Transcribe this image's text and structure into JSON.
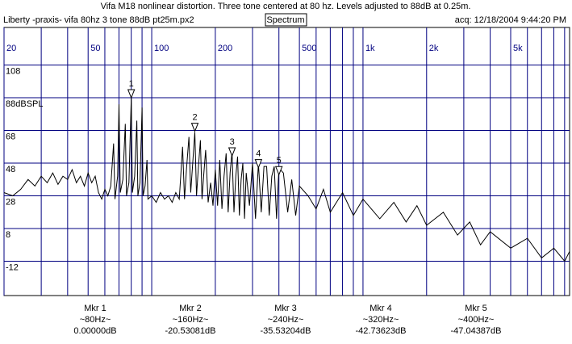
{
  "chart_data": {
    "type": "line",
    "title": "Vifa M18 nonlinear distortion. Three tone centered at 80 hz. Levels adjusted to 88dB at 0.25m.",
    "file_label": "Liberty -praxis-  vifa 80hz 3 tone 88dB pt25m.px2",
    "view": "Spectrum",
    "acquired": "acq: 12/18/2004 9:44:20 PM",
    "xscale": "log",
    "xlim": [
      20,
      9500
    ],
    "ylim": [
      -33,
      131
    ],
    "xticks": [
      20,
      50,
      100,
      200,
      500,
      {
        "value": 1000,
        "label": "1k"
      },
      {
        "value": 2000,
        "label": "2k"
      },
      {
        "value": 5000,
        "label": "5k"
      }
    ],
    "xgrid_lines": [
      20,
      30,
      40,
      50,
      60,
      70,
      80,
      90,
      100,
      200,
      300,
      400,
      500,
      600,
      700,
      800,
      900,
      1000,
      2000,
      3000,
      4000,
      5000,
      6000,
      7000,
      8000,
      9000
    ],
    "yticks": [
      108,
      {
        "value": 88,
        "label": "88dBSPL"
      },
      68,
      48,
      28,
      8,
      -12
    ],
    "grid": true,
    "color": "#000000",
    "grid_color": "#000080",
    "reference_level": 88,
    "x": [
      20,
      22,
      24,
      26,
      28,
      30,
      32,
      34,
      36,
      38,
      40,
      42,
      44,
      46,
      48,
      50,
      52,
      54,
      56,
      58,
      60,
      62,
      64,
      66,
      67,
      69,
      70,
      71,
      73,
      75,
      76,
      78,
      80,
      81,
      83,
      85,
      86,
      88,
      90,
      91,
      93,
      95,
      96,
      100,
      105,
      110,
      115,
      120,
      125,
      130,
      135,
      140,
      143,
      146,
      150,
      153,
      156,
      160,
      163,
      166,
      170,
      173,
      176,
      180,
      185,
      190,
      195,
      200,
      205,
      210,
      215,
      220,
      225,
      230,
      235,
      240,
      245,
      250,
      255,
      260,
      265,
      270,
      275,
      280,
      290,
      300,
      310,
      320,
      330,
      340,
      350,
      360,
      370,
      380,
      390,
      400,
      420,
      440,
      460,
      480,
      500,
      550,
      600,
      650,
      700,
      800,
      900,
      1000,
      1200,
      1400,
      1600,
      1800,
      2000,
      2400,
      2800,
      3200,
      3600,
      4000,
      5000,
      6000,
      7000,
      8000,
      9000,
      9500
    ],
    "values": [
      30,
      28,
      32,
      38,
      34,
      40,
      36,
      42,
      35,
      40,
      38,
      44,
      36,
      40,
      34,
      42,
      36,
      40,
      30,
      26,
      32,
      28,
      34,
      60,
      26,
      40,
      84,
      30,
      38,
      72,
      28,
      36,
      88,
      30,
      40,
      74,
      28,
      36,
      82,
      28,
      34,
      50,
      26,
      28,
      24,
      30,
      26,
      28,
      24,
      30,
      26,
      58,
      26,
      44,
      64,
      30,
      46,
      67,
      28,
      44,
      62,
      26,
      40,
      56,
      24,
      36,
      22,
      44,
      22,
      50,
      20,
      40,
      54,
      18,
      42,
      55,
      18,
      40,
      52,
      16,
      38,
      48,
      14,
      42,
      22,
      48,
      14,
      48,
      18,
      46,
      46,
      16,
      40,
      46,
      14,
      45,
      42,
      18,
      38,
      16,
      34,
      28,
      20,
      32,
      18,
      30,
      16,
      26,
      14,
      24,
      12,
      22,
      10,
      18,
      4,
      12,
      -2,
      6,
      -4,
      2,
      -10,
      -4,
      -12,
      -6
    ],
    "markers": [
      {
        "label": "1",
        "name": "Mkr 1",
        "freq": 80,
        "freq_label": "~80Hz~",
        "level": 0,
        "level_label": "0.00000dB"
      },
      {
        "label": "2",
        "name": "Mkr 2",
        "freq": 160,
        "freq_label": "~160Hz~",
        "level": -20.53081,
        "level_label": "-20.53081dB"
      },
      {
        "label": "3",
        "name": "Mkr 3",
        "freq": 240,
        "freq_label": "~240Hz~",
        "level": -35.53204,
        "level_label": "-35.53204dB"
      },
      {
        "label": "4",
        "name": "Mkr 4",
        "freq": 320,
        "freq_label": "~320Hz~",
        "level": -42.73623,
        "level_label": "-42.73623dB"
      },
      {
        "label": "5",
        "name": "Mkr 5",
        "freq": 400,
        "freq_label": "~400Hz~",
        "level": -47.04387,
        "level_label": "-47.04387dB"
      }
    ]
  }
}
